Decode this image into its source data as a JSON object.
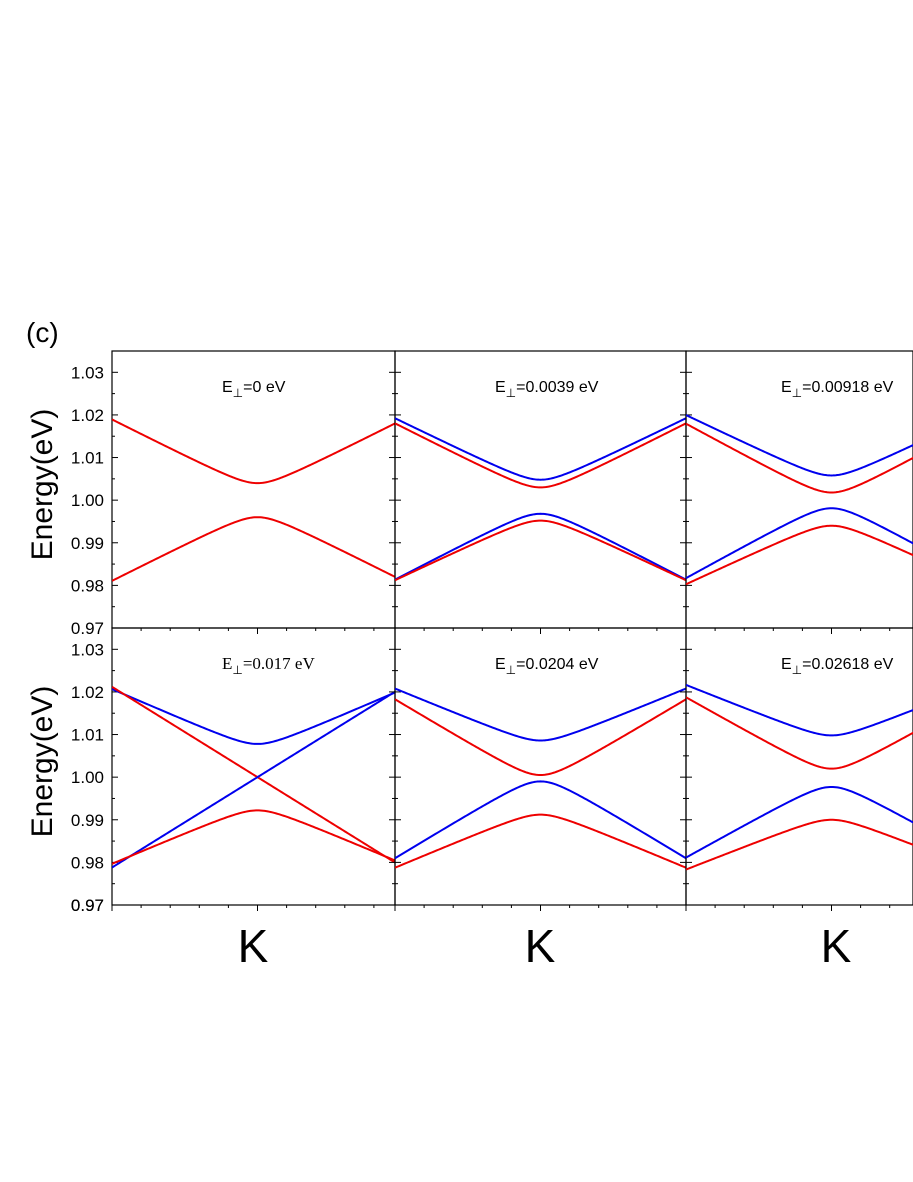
{
  "panel_label": "(c)",
  "chart_data": {
    "type": "line",
    "ylabel": "Energy(eV)",
    "ylim": [
      0.97,
      1.035
    ],
    "yticks": [
      "0.97",
      "0.98",
      "0.99",
      "1.00",
      "1.01",
      "1.02",
      "1.03"
    ],
    "xlabel": "K",
    "xlim": [
      -1,
      1
    ],
    "grid": false,
    "colors": {
      "blue": "#0000ee",
      "red": "#ee0000"
    },
    "panels": [
      {
        "label_main": "E",
        "label_sub": "⊥",
        "label_rest": "=0 eV",
        "label_font": "sans",
        "bands": [
          {
            "color": "red",
            "kind": "upper",
            "E0": 1.004,
            "a": 0.0174
          },
          {
            "color": "red",
            "kind": "lower",
            "E0": 0.996,
            "a": 0.0174
          }
        ]
      },
      {
        "label_main": "E",
        "label_sub": "⊥",
        "label_rest": "=0.0039 eV",
        "label_font": "sans",
        "bands": [
          {
            "color": "blue",
            "kind": "upper",
            "E0": 1.0048,
            "a": 0.0168
          },
          {
            "color": "red",
            "kind": "upper",
            "E0": 1.003,
            "a": 0.0175
          },
          {
            "color": "blue",
            "kind": "lower",
            "E0": 0.9968,
            "a": 0.018
          },
          {
            "color": "red",
            "kind": "lower",
            "E0": 0.9952,
            "a": 0.0163
          }
        ]
      },
      {
        "label_main": "E",
        "label_sub": "⊥",
        "label_rest": "=0.00918 eV",
        "label_font": "sans",
        "bands": [
          {
            "color": "blue",
            "kind": "upper",
            "E0": 1.0058,
            "a": 0.0165
          },
          {
            "color": "red",
            "kind": "upper",
            "E0": 1.0018,
            "a": 0.0188
          },
          {
            "color": "blue",
            "kind": "lower",
            "E0": 0.9981,
            "a": 0.0191
          },
          {
            "color": "red",
            "kind": "lower",
            "E0": 0.994,
            "a": 0.016
          }
        ]
      },
      {
        "label_main": "E",
        "label_sub": "⊥",
        "label_rest": "=0.017 eV",
        "label_font": "serif",
        "bands": [
          {
            "color": "blue",
            "kind": "upper",
            "E0": 1.0078,
            "a": 0.015
          },
          {
            "color": "red",
            "kind": "cross",
            "E0": 1.0,
            "a": 0.0212
          },
          {
            "color": "blue",
            "kind": "cross_neg",
            "E0": 1.0,
            "a": 0.0212
          },
          {
            "color": "red",
            "kind": "lower",
            "E0": 0.9922,
            "a": 0.0146
          }
        ]
      },
      {
        "label_main": "E",
        "label_sub": "⊥",
        "label_rest": "=0.0204 eV",
        "label_font": "sans",
        "bands": [
          {
            "color": "blue",
            "kind": "upper",
            "E0": 1.0086,
            "a": 0.0142
          },
          {
            "color": "red",
            "kind": "upper",
            "E0": 1.0005,
            "a": 0.0207
          },
          {
            "color": "blue",
            "kind": "lower",
            "E0": 0.999,
            "a": 0.021
          },
          {
            "color": "red",
            "kind": "lower",
            "E0": 0.9912,
            "a": 0.0145
          }
        ]
      },
      {
        "label_main": "E",
        "label_sub": "⊥",
        "label_rest": "=0.02618 eV",
        "label_font": "sans",
        "bands": [
          {
            "color": "blue",
            "kind": "upper",
            "E0": 1.0098,
            "a": 0.0138
          },
          {
            "color": "red",
            "kind": "upper",
            "E0": 1.002,
            "a": 0.0195
          },
          {
            "color": "blue",
            "kind": "lower",
            "E0": 0.9977,
            "a": 0.0193
          },
          {
            "color": "red",
            "kind": "lower",
            "E0": 0.99,
            "a": 0.0136
          }
        ]
      }
    ]
  }
}
